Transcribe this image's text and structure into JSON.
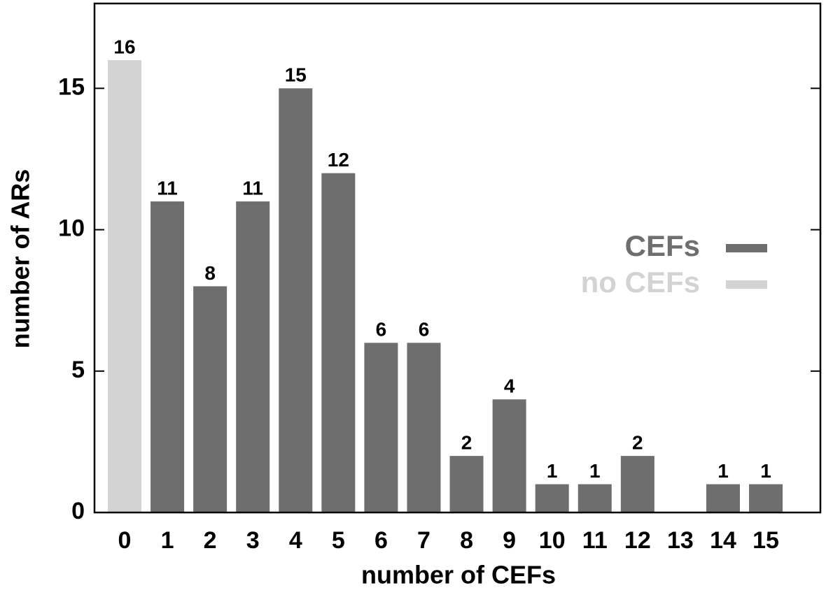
{
  "chart_data": {
    "type": "bar",
    "x_label": "number of CEFs",
    "y_label": "number of ARs",
    "categories": [
      "0",
      "1",
      "2",
      "3",
      "4",
      "5",
      "6",
      "7",
      "8",
      "9",
      "10",
      "11",
      "12",
      "13",
      "14",
      "15"
    ],
    "series": [
      {
        "name": "CEFs",
        "color": "#6e6e6e",
        "values": [
          null,
          11,
          8,
          11,
          15,
          12,
          6,
          6,
          2,
          4,
          1,
          1,
          2,
          null,
          1,
          1
        ]
      },
      {
        "name": "no CEFs",
        "color": "#d3d3d3",
        "values": [
          16,
          null,
          null,
          null,
          null,
          null,
          null,
          null,
          null,
          null,
          null,
          null,
          null,
          null,
          null,
          null
        ]
      }
    ],
    "ylim": [
      0,
      18
    ],
    "yticks": [
      0,
      5,
      10,
      15
    ],
    "grid": false
  }
}
